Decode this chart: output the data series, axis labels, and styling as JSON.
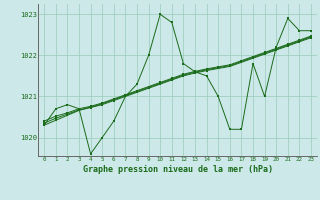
{
  "title": "Graphe pression niveau de la mer (hPa)",
  "hours": [
    0,
    1,
    2,
    3,
    4,
    5,
    6,
    7,
    8,
    9,
    10,
    11,
    12,
    13,
    14,
    15,
    16,
    17,
    18,
    19,
    20,
    21,
    22,
    23
  ],
  "line_main": [
    1020.3,
    1020.7,
    1020.8,
    1020.7,
    1019.6,
    1020.0,
    1020.4,
    1021.0,
    1021.3,
    1022.0,
    1023.0,
    1022.8,
    1021.8,
    1021.6,
    1021.5,
    1021.0,
    1020.2,
    1020.2,
    1021.8,
    1021.0,
    1022.2,
    1022.9,
    1022.6,
    1022.6
  ],
  "line_lin1": [
    1020.3,
    1020.42,
    1020.54,
    1020.66,
    1020.73,
    1020.8,
    1020.9,
    1021.0,
    1021.1,
    1021.2,
    1021.3,
    1021.4,
    1021.5,
    1021.57,
    1021.63,
    1021.68,
    1021.73,
    1021.83,
    1021.93,
    1022.03,
    1022.13,
    1022.23,
    1022.33,
    1022.43
  ],
  "line_lin2": [
    1020.35,
    1020.47,
    1020.57,
    1020.67,
    1020.74,
    1020.82,
    1020.92,
    1021.02,
    1021.12,
    1021.22,
    1021.32,
    1021.42,
    1021.52,
    1021.59,
    1021.65,
    1021.7,
    1021.75,
    1021.85,
    1021.95,
    1022.05,
    1022.15,
    1022.25,
    1022.35,
    1022.45
  ],
  "line_lin3": [
    1020.4,
    1020.52,
    1020.6,
    1020.7,
    1020.76,
    1020.84,
    1020.94,
    1021.04,
    1021.14,
    1021.24,
    1021.34,
    1021.44,
    1021.54,
    1021.61,
    1021.67,
    1021.72,
    1021.77,
    1021.87,
    1021.97,
    1022.07,
    1022.17,
    1022.27,
    1022.37,
    1022.47
  ],
  "bg_color": "#cce8e8",
  "grid_color": "#99ccbb",
  "line_color": "#1a6b1a",
  "ylim": [
    1019.55,
    1023.25
  ],
  "yticks": [
    1020,
    1021,
    1022,
    1023
  ],
  "xlim": [
    -0.5,
    23.5
  ]
}
